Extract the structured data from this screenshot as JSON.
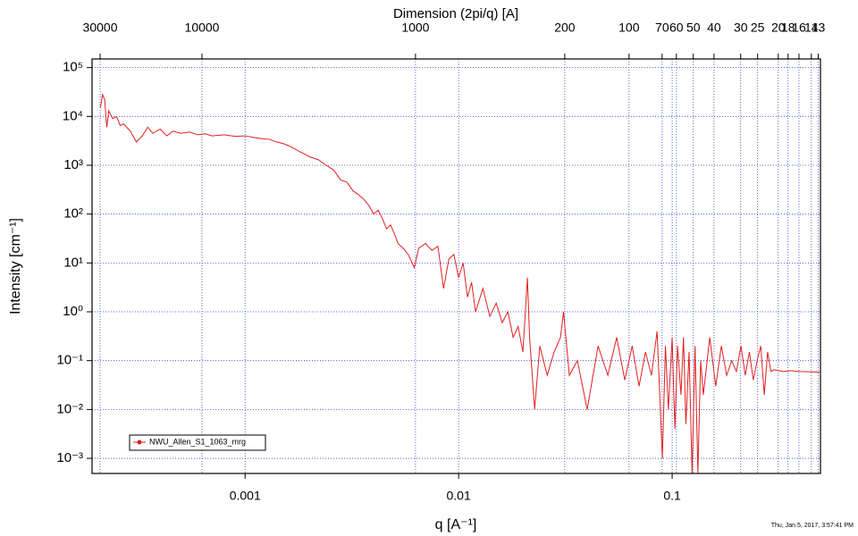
{
  "chart_data": {
    "type": "line",
    "xlabel": "q [A⁻¹]",
    "ylabel": "Intensity [cm⁻¹]",
    "x2label": "Dimension (2pi/q) [A]",
    "timestamp": "Thu, Jan 5, 2017, 3:57:41 PM",
    "xlog": true,
    "ylog": true,
    "grid": true,
    "legend": "lower-left",
    "xlim": [
      0.000192,
      0.495
    ],
    "xticks": [
      0.001,
      0.01,
      0.1
    ],
    "x2lim": [
      32725,
      12.69
    ],
    "x2ticks": [
      30000,
      10000,
      1000,
      200,
      100,
      70,
      60,
      50,
      40,
      30,
      25,
      20,
      18,
      16,
      14,
      13
    ],
    "ylim": [
      0.00049,
      150000
    ],
    "yticks": [
      {
        "value": 100000,
        "label": "10⁵"
      },
      {
        "value": 10000,
        "label": "10⁴"
      },
      {
        "value": 1000,
        "label": "10³"
      },
      {
        "value": 100,
        "label": "10²"
      },
      {
        "value": 10,
        "label": "10¹"
      },
      {
        "value": 1,
        "label": "10⁰"
      },
      {
        "value": 0.1,
        "label": "10⁻¹"
      },
      {
        "value": 0.01,
        "label": "10⁻²"
      },
      {
        "value": 0.001,
        "label": "10⁻³"
      }
    ],
    "x": [
      0.00021,
      0.000215,
      0.00022,
      0.000225,
      0.00023,
      0.00024,
      0.00025,
      0.00026,
      0.00027,
      0.00029,
      0.00031,
      0.00033,
      0.00035,
      0.00037,
      0.0004,
      0.00043,
      0.00046,
      0.0005,
      0.00055,
      0.0006,
      0.00065,
      0.0007,
      0.0008,
      0.0009,
      0.001,
      0.0011,
      0.0012,
      0.0013,
      0.0014,
      0.0015,
      0.0016,
      0.0017,
      0.0018,
      0.0019,
      0.002,
      0.0022,
      0.0024,
      0.0026,
      0.0028,
      0.003,
      0.0032,
      0.0034,
      0.0036,
      0.0038,
      0.004,
      0.0042,
      0.0044,
      0.0046,
      0.0048,
      0.005,
      0.0052,
      0.0055,
      0.0058,
      0.0062,
      0.0065,
      0.007,
      0.0075,
      0.008,
      0.0085,
      0.009,
      0.0095,
      0.01,
      0.0105,
      0.011,
      0.0115,
      0.012,
      0.013,
      0.014,
      0.015,
      0.016,
      0.017,
      0.018,
      0.019,
      0.02,
      0.021,
      0.0215,
      0.0227,
      0.024,
      0.026,
      0.028,
      0.03,
      0.031,
      0.033,
      0.036,
      0.04,
      0.045,
      0.05,
      0.055,
      0.06,
      0.065,
      0.07,
      0.075,
      0.08,
      0.085,
      0.09,
      0.093,
      0.096,
      0.1,
      0.103,
      0.106,
      0.11,
      0.113,
      0.116,
      0.12,
      0.124,
      0.128,
      0.132,
      0.136,
      0.14,
      0.15,
      0.16,
      0.17,
      0.18,
      0.19,
      0.2,
      0.21,
      0.22,
      0.23,
      0.24,
      0.25,
      0.26,
      0.27,
      0.28,
      0.29,
      0.3,
      0.33,
      0.36,
      0.4,
      0.45,
      0.49
    ],
    "series": [
      {
        "name": "NWU_Allen_S1_1063_mrg",
        "color": "#e02020",
        "values": [
          15000,
          28000,
          22000,
          6000,
          13000,
          9000,
          10000,
          6500,
          7000,
          5000,
          3000,
          4000,
          6000,
          4500,
          5500,
          4000,
          5000,
          4500,
          4800,
          4200,
          4400,
          4000,
          4200,
          3900,
          4000,
          3700,
          3500,
          3400,
          3000,
          2800,
          2500,
          2200,
          1900,
          1700,
          1500,
          1300,
          1000,
          800,
          500,
          450,
          300,
          250,
          200,
          150,
          100,
          120,
          80,
          50,
          60,
          40,
          25,
          20,
          15,
          8,
          20,
          25,
          18,
          22,
          3,
          12,
          15,
          5,
          10,
          2,
          4,
          1,
          3,
          0.8,
          1.5,
          0.6,
          1,
          0.3,
          0.5,
          0.15,
          5,
          0.3,
          0.01,
          0.2,
          0.05,
          0.15,
          0.3,
          1.0,
          0.05,
          0.1,
          0.01,
          0.2,
          0.05,
          0.3,
          0.04,
          0.2,
          0.03,
          0.15,
          0.05,
          0.4,
          0.001,
          0.2,
          0.01,
          0.3,
          0.004,
          0.2,
          0.02,
          0.3,
          0.005,
          0.15,
          0.0005,
          0.2,
          0.0005,
          0.1,
          0.02,
          0.3,
          0.03,
          0.2,
          0.05,
          0.1,
          0.06,
          0.2,
          0.05,
          0.15,
          0.04,
          0.1,
          0.2,
          0.02,
          0.15,
          0.06,
          0.065,
          0.06,
          0.062,
          0.06,
          0.059,
          0.058
        ]
      }
    ]
  }
}
